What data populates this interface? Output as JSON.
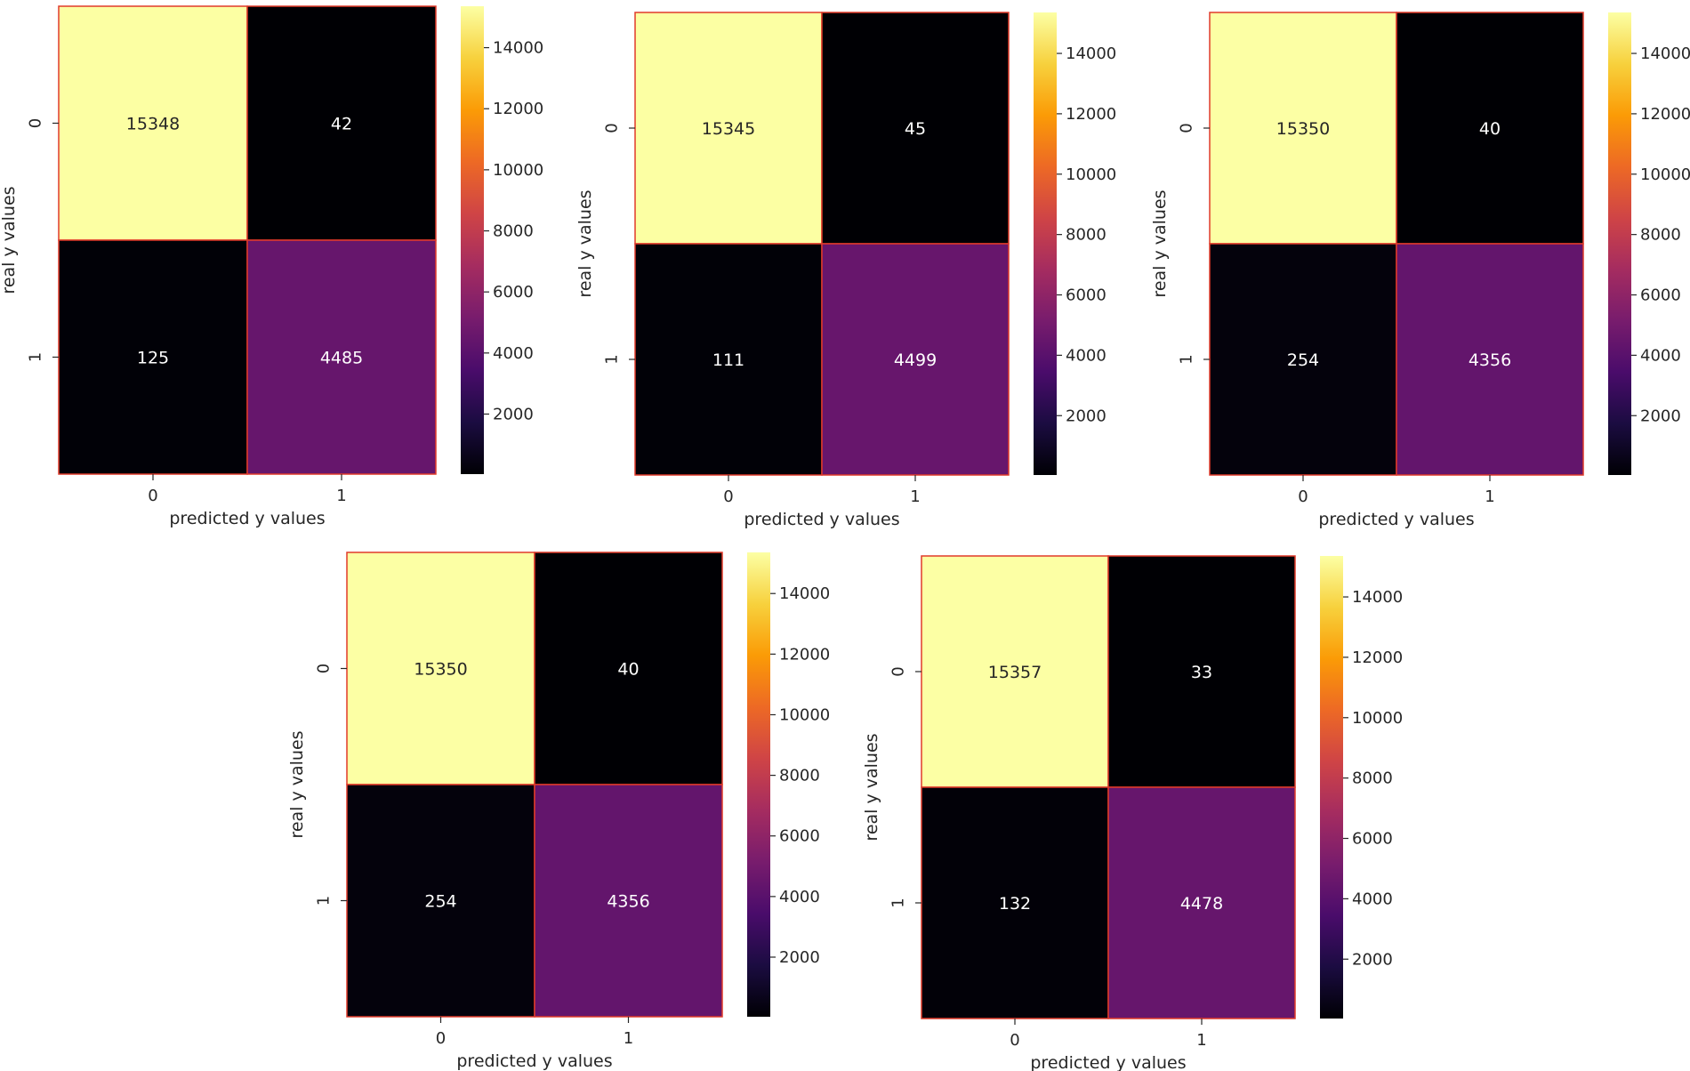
{
  "chart_data": [
    {
      "type": "heatmap",
      "title": "",
      "xlabel": "predicted y values",
      "ylabel": "real y values",
      "x_categories": [
        "0",
        "1"
      ],
      "y_categories": [
        "0",
        "1"
      ],
      "values": [
        [
          15348,
          42
        ],
        [
          125,
          4485
        ]
      ],
      "colormap": "inferno",
      "colorbar_range": [
        33,
        15357
      ],
      "colorbar_ticks": [
        "2000",
        "4000",
        "6000",
        "8000",
        "10000",
        "12000",
        "14000"
      ]
    },
    {
      "type": "heatmap",
      "title": "",
      "xlabel": "predicted y values",
      "ylabel": "real y values",
      "x_categories": [
        "0",
        "1"
      ],
      "y_categories": [
        "0",
        "1"
      ],
      "values": [
        [
          15345,
          45
        ],
        [
          111,
          4499
        ]
      ],
      "colormap": "inferno",
      "colorbar_range": [
        33,
        15357
      ],
      "colorbar_ticks": [
        "2000",
        "4000",
        "6000",
        "8000",
        "10000",
        "12000",
        "14000"
      ]
    },
    {
      "type": "heatmap",
      "title": "",
      "xlabel": "predicted y values",
      "ylabel": "real y values",
      "x_categories": [
        "0",
        "1"
      ],
      "y_categories": [
        "0",
        "1"
      ],
      "values": [
        [
          15350,
          40
        ],
        [
          254,
          4356
        ]
      ],
      "colormap": "inferno",
      "colorbar_range": [
        33,
        15357
      ],
      "colorbar_ticks": [
        "2000",
        "4000",
        "6000",
        "8000",
        "10000",
        "12000",
        "14000"
      ]
    },
    {
      "type": "heatmap",
      "title": "",
      "xlabel": "predicted y values",
      "ylabel": "real y values",
      "x_categories": [
        "0",
        "1"
      ],
      "y_categories": [
        "0",
        "1"
      ],
      "values": [
        [
          15350,
          40
        ],
        [
          254,
          4356
        ]
      ],
      "colormap": "inferno",
      "colorbar_range": [
        33,
        15357
      ],
      "colorbar_ticks": [
        "2000",
        "4000",
        "6000",
        "8000",
        "10000",
        "12000",
        "14000"
      ]
    },
    {
      "type": "heatmap",
      "title": "",
      "xlabel": "predicted y values",
      "ylabel": "real y values",
      "x_categories": [
        "0",
        "1"
      ],
      "y_categories": [
        "0",
        "1"
      ],
      "values": [
        [
          15357,
          33
        ],
        [
          132,
          4478
        ]
      ],
      "colormap": "inferno",
      "colorbar_range": [
        33,
        15357
      ],
      "colorbar_ticks": [
        "2000",
        "4000",
        "6000",
        "8000",
        "10000",
        "12000",
        "14000"
      ]
    }
  ],
  "style": {
    "cell_border_color": "#e03a2a",
    "text_dark": "#262626",
    "text_light": "#ffffff",
    "inferno_stops": [
      "#000004",
      "#1b0c41",
      "#4a0c6b",
      "#781c6d",
      "#a52c60",
      "#cf4446",
      "#ed6925",
      "#fb9b06",
      "#f7d13d",
      "#fcffa4"
    ]
  }
}
